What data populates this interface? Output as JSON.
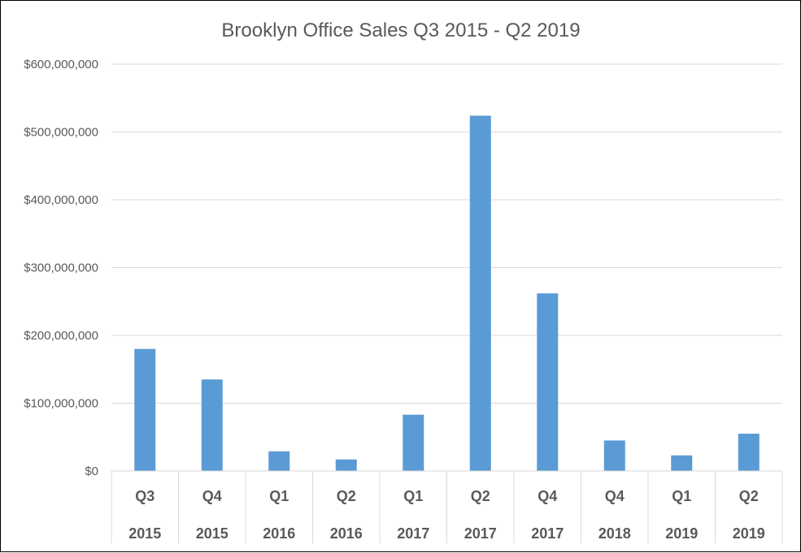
{
  "chart_data": {
    "type": "bar",
    "title": "Brooklyn Office Sales Q3 2015 - Q2 2019",
    "xlabel": "",
    "ylabel": "",
    "ylim": [
      0,
      600000000
    ],
    "yticks": [
      0,
      100000000,
      200000000,
      300000000,
      400000000,
      500000000,
      600000000
    ],
    "ytick_labels": [
      "$0",
      "$100,000,000",
      "$200,000,000",
      "$300,000,000",
      "$400,000,000",
      "$500,000,000",
      "$600,000,000"
    ],
    "categories": [
      {
        "quarter": "Q3",
        "year": "2015"
      },
      {
        "quarter": "Q4",
        "year": "2015"
      },
      {
        "quarter": "Q1",
        "year": "2016"
      },
      {
        "quarter": "Q2",
        "year": "2016"
      },
      {
        "quarter": "Q1",
        "year": "2017"
      },
      {
        "quarter": "Q2",
        "year": "2017"
      },
      {
        "quarter": "Q4",
        "year": "2017"
      },
      {
        "quarter": "Q4",
        "year": "2018"
      },
      {
        "quarter": "Q1",
        "year": "2019"
      },
      {
        "quarter": "Q2",
        "year": "2019"
      }
    ],
    "values": [
      180000000,
      135000000,
      29000000,
      17000000,
      83000000,
      524000000,
      262000000,
      45000000,
      23000000,
      55000000
    ],
    "grid": true,
    "legend": "none",
    "bar_color": "#5B9BD5"
  }
}
